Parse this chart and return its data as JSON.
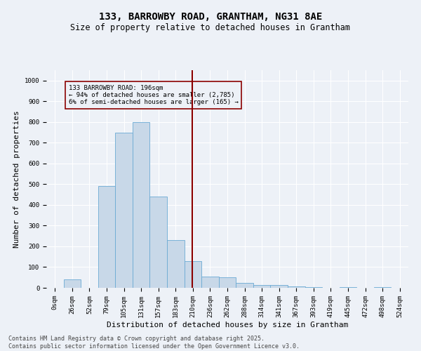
{
  "title": "133, BARROWBY ROAD, GRANTHAM, NG31 8AE",
  "subtitle": "Size of property relative to detached houses in Grantham",
  "xlabel": "Distribution of detached houses by size in Grantham",
  "ylabel": "Number of detached properties",
  "categories": [
    "0sqm",
    "26sqm",
    "52sqm",
    "79sqm",
    "105sqm",
    "131sqm",
    "157sqm",
    "183sqm",
    "210sqm",
    "236sqm",
    "262sqm",
    "288sqm",
    "314sqm",
    "341sqm",
    "367sqm",
    "393sqm",
    "419sqm",
    "445sqm",
    "472sqm",
    "498sqm",
    "524sqm"
  ],
  "values": [
    0,
    40,
    0,
    490,
    750,
    800,
    440,
    230,
    130,
    55,
    50,
    25,
    12,
    12,
    8,
    5,
    0,
    5,
    0,
    5,
    0
  ],
  "bar_color": "#c8d8e8",
  "bar_edge_color": "#6aaad4",
  "vline_x_index": 8,
  "vline_color": "#8b0000",
  "annotation_title": "133 BARROWBY ROAD: 196sqm",
  "annotation_line1": "← 94% of detached houses are smaller (2,785)",
  "annotation_line2": "6% of semi-detached houses are larger (165) →",
  "annotation_box_color": "#8b0000",
  "ylim": [
    0,
    1050
  ],
  "yticks": [
    0,
    100,
    200,
    300,
    400,
    500,
    600,
    700,
    800,
    900,
    1000
  ],
  "footer1": "Contains HM Land Registry data © Crown copyright and database right 2025.",
  "footer2": "Contains public sector information licensed under the Open Government Licence v3.0.",
  "bg_color": "#edf1f7",
  "grid_color": "#ffffff",
  "title_fontsize": 10,
  "subtitle_fontsize": 8.5,
  "tick_fontsize": 6.5,
  "axis_label_fontsize": 8,
  "footer_fontsize": 6
}
